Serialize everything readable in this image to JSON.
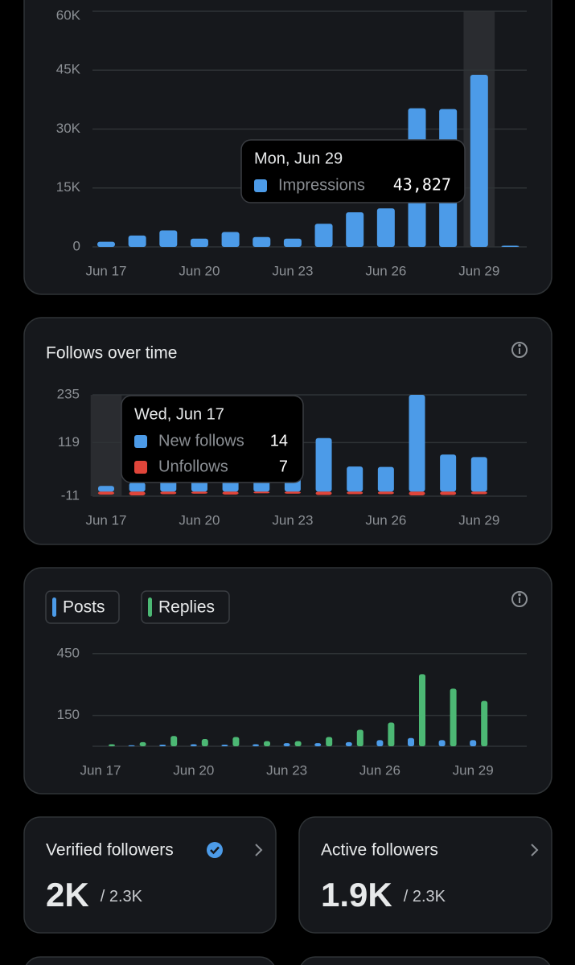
{
  "chart_data": [
    {
      "type": "bar",
      "categories": [
        "Jun 17",
        null,
        null,
        "Jun 20",
        null,
        null,
        "Jun 23",
        null,
        null,
        "Jun 26",
        null,
        null,
        "Jun 29",
        null
      ],
      "series": [
        {
          "name": "Impressions",
          "color": "#4c9be8",
          "values": [
            1300,
            2900,
            4200,
            2100,
            3800,
            2500,
            2100,
            5900,
            8800,
            9800,
            35300,
            35100,
            43827,
            300
          ]
        }
      ],
      "ylim": [
        0,
        60000
      ],
      "yticks": [
        0,
        {
          "value": 15000,
          "label": "15K"
        },
        {
          "value": 30000,
          "label": "30K"
        },
        {
          "value": 45000,
          "label": "45K"
        },
        {
          "value": 60000,
          "label": "60K"
        }
      ],
      "grid": true,
      "tooltip": {
        "title": "Mon, Jun 29",
        "value_labels": [
          "43,827"
        ]
      }
    },
    {
      "type": "bar",
      "title": "Follows over time",
      "categories": [
        "Jun 17",
        null,
        null,
        "Jun 20",
        null,
        null,
        "Jun 23",
        null,
        null,
        "Jun 26",
        null,
        null,
        "Jun 29",
        null
      ],
      "series": [
        {
          "name": "New follows",
          "color": "#4c9be8",
          "values": [
            14,
            22,
            30,
            26,
            32,
            40,
            45,
            130,
            61,
            60,
            235,
            90,
            84,
            null
          ]
        },
        {
          "name": "Unfollows",
          "color": "#e0453a",
          "values": [
            -7,
            -9,
            -6,
            -5,
            -7,
            -4,
            -5,
            -8,
            -6,
            -6,
            -9,
            -8,
            -6,
            null
          ]
        }
      ],
      "ylim": [
        -11,
        235
      ],
      "yticks": [
        -11,
        119,
        235
      ],
      "grid": true,
      "tooltip": {
        "title": "Wed, Jun 17",
        "value_labels": [
          "14",
          "7"
        ]
      }
    },
    {
      "type": "bar",
      "categories": [
        "Jun 17",
        null,
        null,
        "Jun 20",
        null,
        null,
        "Jun 23",
        null,
        null,
        "Jun 26",
        null,
        null,
        "Jun 29"
      ],
      "series": [
        {
          "name": "Posts",
          "color": "#4c9be8",
          "values": [
            0,
            5,
            8,
            10,
            8,
            10,
            15,
            15,
            20,
            30,
            40,
            30,
            30
          ]
        },
        {
          "name": "Replies",
          "color": "#4cb874",
          "values": [
            10,
            20,
            50,
            35,
            45,
            25,
            25,
            45,
            80,
            115,
            350,
            280,
            220
          ]
        }
      ],
      "ylim": [
        0,
        500
      ],
      "yticks": [
        150,
        450
      ],
      "grid": true,
      "legend": "top-left"
    }
  ],
  "cards": [
    {
      "title": "Verified followers",
      "value": "2K",
      "total": "/ 2.3K"
    },
    {
      "title": "Active followers",
      "value": "1.9K",
      "total": "/ 2.3K"
    }
  ]
}
